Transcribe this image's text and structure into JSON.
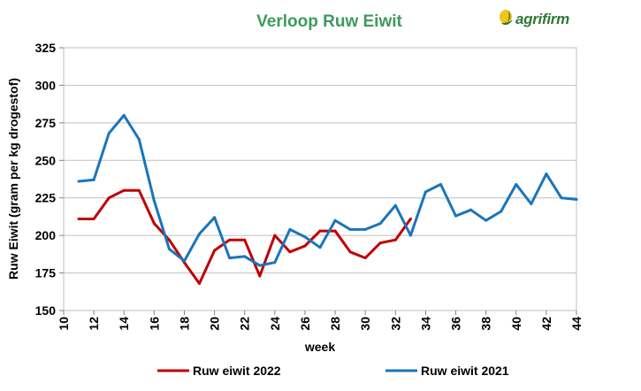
{
  "logo": {
    "text": "agrifirm"
  },
  "chart_data": {
    "type": "line",
    "title": "Verloop Ruw Eiwit",
    "xlabel": "week",
    "ylabel": "Ruw Eiwit (gram per kg drogestof)",
    "xlim": [
      10,
      44
    ],
    "ylim": [
      150,
      325
    ],
    "xticks": [
      10,
      12,
      14,
      16,
      18,
      20,
      22,
      24,
      26,
      28,
      30,
      32,
      34,
      36,
      38,
      40,
      42,
      44
    ],
    "yticks": [
      150,
      175,
      200,
      225,
      250,
      275,
      300,
      325
    ],
    "grid": true,
    "legend": "bottom",
    "series": [
      {
        "name": "Ruw eiwit 2022",
        "color": "#c00000",
        "x": [
          11,
          12,
          13,
          14,
          15,
          16,
          17,
          18,
          19,
          20,
          21,
          22,
          23,
          24,
          25,
          26,
          27,
          28,
          29,
          30,
          31,
          32,
          33
        ],
        "values": [
          211,
          211,
          225,
          230,
          230,
          208,
          197,
          182,
          168,
          190,
          197,
          197,
          173,
          200,
          189,
          193,
          203,
          203,
          189,
          185,
          195,
          197,
          211
        ]
      },
      {
        "name": "Ruw eiwit 2021",
        "color": "#1a75bb",
        "x": [
          11,
          12,
          13,
          14,
          15,
          16,
          17,
          18,
          19,
          20,
          21,
          22,
          23,
          24,
          25,
          26,
          27,
          28,
          29,
          30,
          31,
          32,
          33,
          34,
          35,
          36,
          37,
          38,
          39,
          40,
          41,
          42,
          43,
          44
        ],
        "values": [
          236,
          237,
          268,
          280,
          264,
          223,
          191,
          183,
          201,
          212,
          185,
          186,
          180,
          182,
          204,
          199,
          192,
          210,
          204,
          204,
          208,
          220,
          200,
          229,
          234,
          213,
          217,
          210,
          216,
          234,
          221,
          241,
          225,
          224
        ]
      }
    ]
  }
}
